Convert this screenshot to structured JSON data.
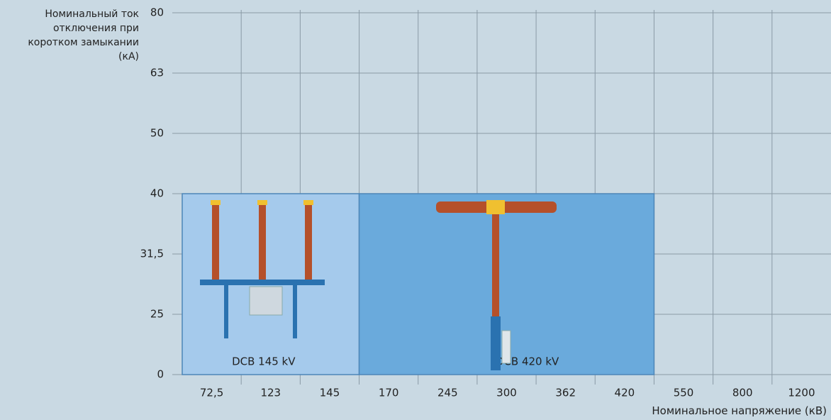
{
  "chart_data": {
    "type": "region",
    "y_label": "Номинальный ток отключения при коротком замыкании (кА)",
    "x_label": "Номинальное напряжение (кВ)",
    "categories": [
      "72,5",
      "123",
      "145",
      "170",
      "245",
      "300",
      "362",
      "420",
      "550",
      "800",
      "1200"
    ],
    "y_categories": [
      "0",
      "25",
      "31,5",
      "40",
      "50",
      "63",
      "80"
    ],
    "regions": [
      {
        "name": "DCB 145 kV",
        "color": "#a5caec",
        "x_from": "72,5",
        "x_to": "145",
        "y_to": "40"
      },
      {
        "name": "DCB 420 kV",
        "color": "#6aaadc",
        "x_from": "170",
        "x_to": "420",
        "y_to": "40"
      }
    ],
    "grid": true
  }
}
